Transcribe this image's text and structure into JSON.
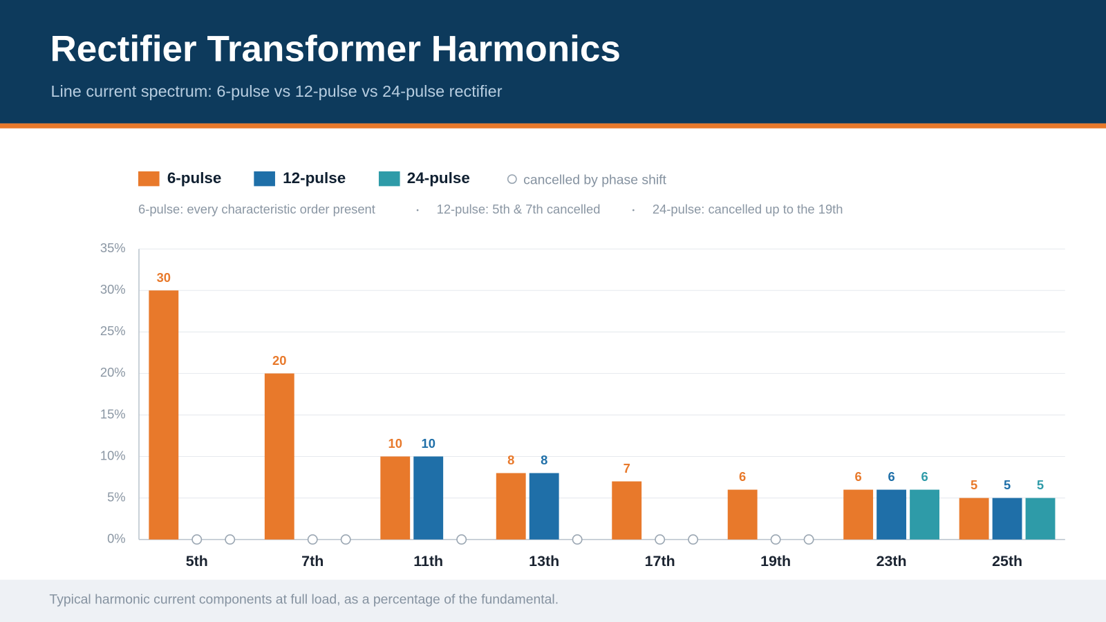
{
  "chart_data": {
    "type": "bar",
    "title": "Rectifier Transformer Harmonics",
    "subtitle": "Line current spectrum: 6-pulse vs 12-pulse vs 24-pulse rectifier",
    "cancelled_label": "cancelled by phase shift",
    "notes": [
      "6-pulse: every characteristic order present",
      "12-pulse: 5th & 7th cancelled",
      "24-pulse: cancelled up to the 19th"
    ],
    "footnote": "Typical harmonic current components at full load, as a percentage of the fundamental.",
    "categories": [
      "5th",
      "7th",
      "11th",
      "13th",
      "17th",
      "19th",
      "23th",
      "25th"
    ],
    "series": [
      {
        "name": "6-pulse",
        "color": "#e8792b",
        "values": [
          30,
          20,
          10,
          8,
          7,
          6,
          6,
          5
        ]
      },
      {
        "name": "12-pulse",
        "color": "#1f6fa8",
        "values": [
          null,
          null,
          10,
          8,
          null,
          null,
          6,
          5
        ]
      },
      {
        "name": "24-pulse",
        "color": "#2e9ba8",
        "values": [
          null,
          null,
          null,
          null,
          null,
          null,
          6,
          5
        ]
      }
    ],
    "ylim": [
      0,
      35
    ],
    "yticks": [
      {
        "value": 0,
        "label": "0%"
      },
      {
        "value": 5,
        "label": "5%"
      },
      {
        "value": 10,
        "label": "10%"
      },
      {
        "value": 15,
        "label": "15%"
      },
      {
        "value": 20,
        "label": "20%"
      },
      {
        "value": 25,
        "label": "25%"
      },
      {
        "value": 30,
        "label": "30%"
      },
      {
        "value": 35,
        "label": "35%"
      }
    ],
    "grid": true
  }
}
